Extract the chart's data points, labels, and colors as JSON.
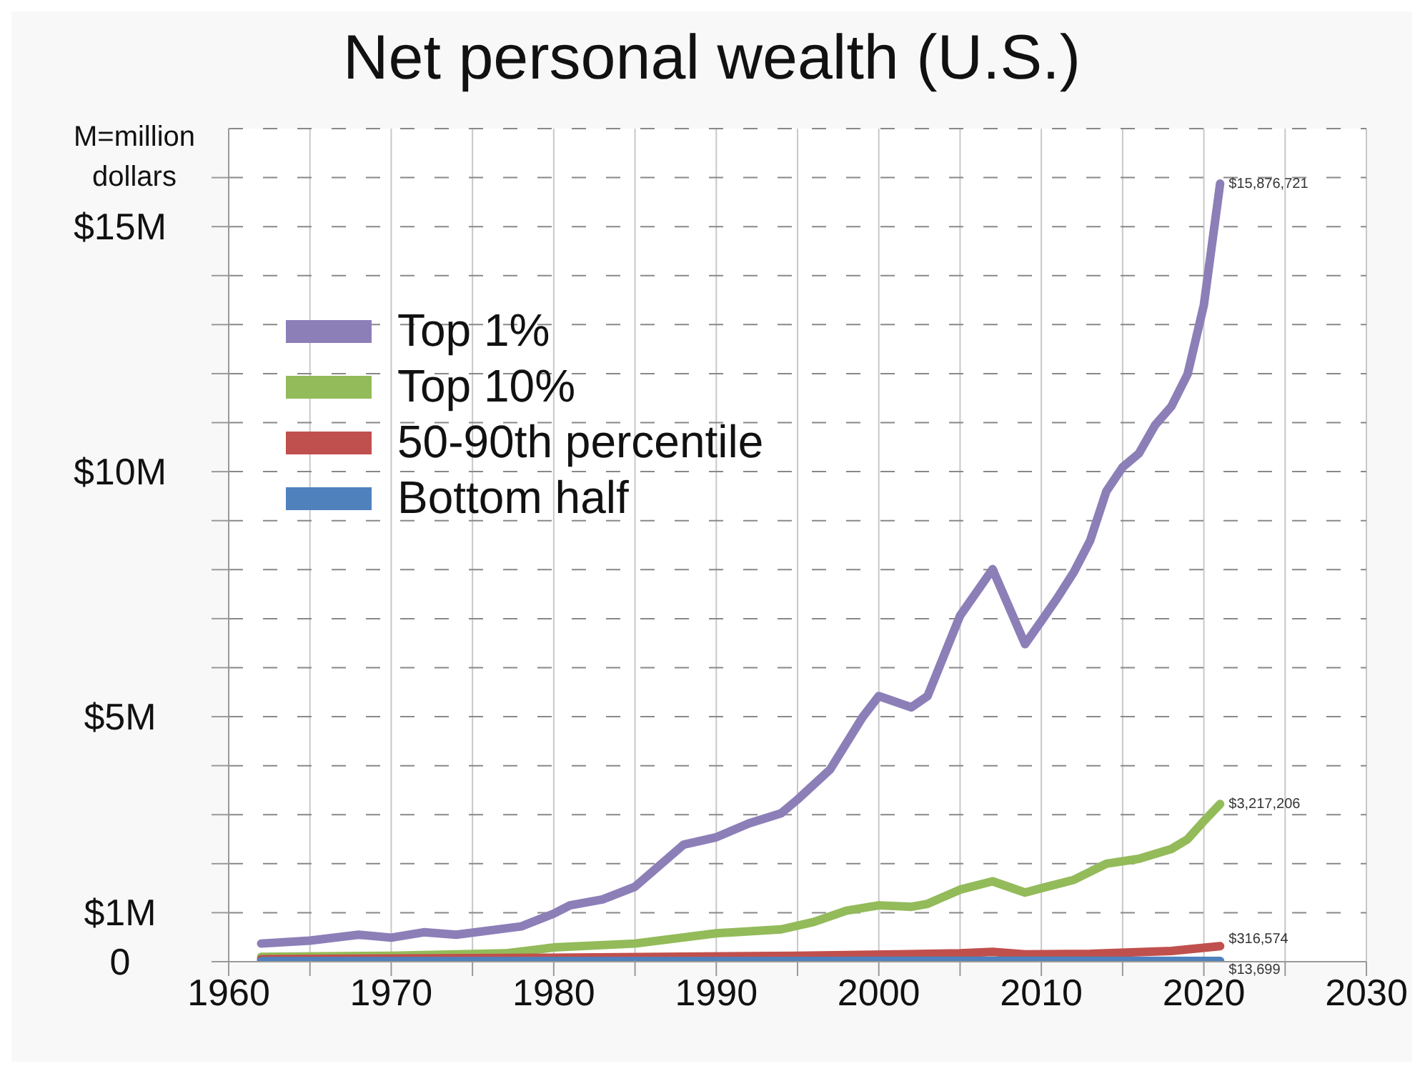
{
  "chart_data": {
    "type": "line",
    "title": "Net personal wealth (U.S.)",
    "annotations": [
      "M=million dollars"
    ],
    "xlim": [
      1960,
      2030
    ],
    "xticks": [
      1960,
      {
        "value": 1965,
        "label": null
      },
      1970,
      {
        "value": 1975,
        "label": null
      },
      1980,
      {
        "value": 1985,
        "label": null
      },
      1990,
      {
        "value": 1995,
        "label": null
      },
      2000,
      {
        "value": 2005,
        "label": null
      },
      2010,
      {
        "value": 2015,
        "label": null
      },
      2020,
      {
        "value": 2025,
        "label": null
      },
      2030
    ],
    "ylim": [
      0,
      17000000
    ],
    "yticks": [
      0,
      {
        "value": 1000000,
        "label": "$1M"
      },
      {
        "value": 2000000,
        "label": null
      },
      {
        "value": 3000000,
        "label": null
      },
      {
        "value": 4000000,
        "label": null
      },
      {
        "value": 5000000,
        "label": "$5M"
      },
      {
        "value": 6000000,
        "label": null
      },
      {
        "value": 7000000,
        "label": null
      },
      {
        "value": 8000000,
        "label": null
      },
      {
        "value": 9000000,
        "label": null
      },
      {
        "value": 10000000,
        "label": "$10M"
      },
      {
        "value": 11000000,
        "label": null
      },
      {
        "value": 12000000,
        "label": null
      },
      {
        "value": 13000000,
        "label": null
      },
      {
        "value": 14000000,
        "label": null
      },
      {
        "value": 15000000,
        "label": "$15M"
      },
      {
        "value": 16000000,
        "label": null
      }
    ],
    "grid": true,
    "legend": "top left",
    "line_style": "solid",
    "series": [
      {
        "name": "Top 1%",
        "color": "#8c7fb8",
        "x": [
          1962,
          1965,
          1968,
          1970,
          1972,
          1974,
          1978,
          1980,
          1981,
          1983,
          1985,
          1988,
          1990,
          1992,
          1994,
          1995,
          1997,
          1999,
          2000,
          2002,
          2003,
          2005,
          2007,
          2009,
          2010,
          2011,
          2012,
          2013,
          2014,
          2015,
          2016,
          2017,
          2018,
          2019,
          2020,
          2021
        ],
        "values": [
          370000,
          430000,
          550000,
          490000,
          600000,
          550000,
          720000,
          980000,
          1150000,
          1270000,
          1530000,
          2390000,
          2540000,
          2820000,
          3030000,
          3310000,
          3920000,
          4990000,
          5420000,
          5190000,
          5420000,
          7060000,
          8010000,
          6480000,
          6950000,
          7430000,
          7950000,
          8590000,
          9600000,
          10090000,
          10370000,
          10950000,
          11330000,
          11990000,
          13400000,
          15876721
        ],
        "value_labels": [
          null,
          null,
          null,
          null,
          null,
          null,
          null,
          null,
          null,
          null,
          null,
          null,
          null,
          null,
          null,
          null,
          null,
          null,
          null,
          null,
          null,
          null,
          null,
          null,
          null,
          null,
          null,
          null,
          null,
          null,
          null,
          null,
          null,
          null,
          null,
          "$15,876,721"
        ]
      },
      {
        "name": "Top 10%",
        "color": "#93bb5a",
        "x": [
          1962,
          1970,
          1977,
          1980,
          1985,
          1990,
          1994,
          1996,
          1998,
          2000,
          2002,
          2003,
          2005,
          2007,
          2009,
          2010,
          2012,
          2014,
          2016,
          2018,
          2019,
          2020,
          2021
        ],
        "values": [
          100000,
          120000,
          170000,
          290000,
          370000,
          580000,
          660000,
          810000,
          1040000,
          1150000,
          1120000,
          1180000,
          1470000,
          1640000,
          1410000,
          1500000,
          1670000,
          2000000,
          2100000,
          2300000,
          2500000,
          2870000,
          3217206
        ],
        "value_labels": [
          null,
          null,
          null,
          null,
          null,
          null,
          null,
          null,
          null,
          null,
          null,
          null,
          null,
          null,
          null,
          null,
          null,
          null,
          null,
          null,
          null,
          null,
          "$3,217,206"
        ]
      },
      {
        "name": "50-90th percentile",
        "color": "#c0504d",
        "x": [
          1962,
          1980,
          1995,
          2005,
          2007,
          2009,
          2013,
          2018,
          2021
        ],
        "values": [
          50000,
          80000,
          120000,
          170000,
          200000,
          150000,
          160000,
          220000,
          316574
        ],
        "value_labels": [
          null,
          null,
          null,
          null,
          null,
          null,
          null,
          null,
          "$316,574"
        ]
      },
      {
        "name": "Bottom half",
        "color": "#4f81bd",
        "x": [
          1962,
          1990,
          2007,
          2021
        ],
        "values": [
          10000,
          10000,
          20000,
          13699
        ],
        "value_labels": [
          null,
          null,
          null,
          "$13,699"
        ]
      }
    ]
  }
}
